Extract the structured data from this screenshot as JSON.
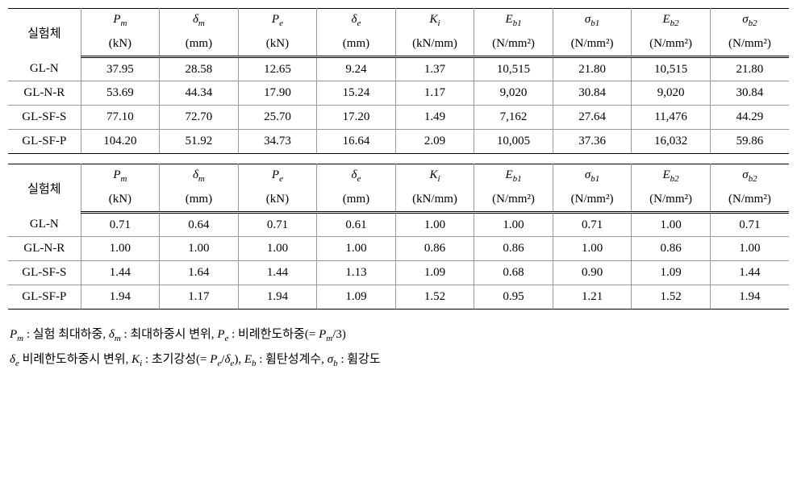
{
  "headers": {
    "specimen": "실험체",
    "cols": [
      {
        "sym": "P",
        "sub": "m",
        "unit": "(kN)"
      },
      {
        "sym": "δ",
        "sub": "m",
        "unit": "(mm)"
      },
      {
        "sym": "P",
        "sub": "e",
        "unit": "(kN)"
      },
      {
        "sym": "δ",
        "sub": "e",
        "unit": "(mm)"
      },
      {
        "sym": "K",
        "sub": "i",
        "unit": "(kN/mm)"
      },
      {
        "sym": "E",
        "sub": "b1",
        "unit": "(N/mm²)"
      },
      {
        "sym": "σ",
        "sub": "b1",
        "unit": "(N/mm²)"
      },
      {
        "sym": "E",
        "sub": "b2",
        "unit": "(N/mm²)"
      },
      {
        "sym": "σ",
        "sub": "b2",
        "unit": "(N/mm²)"
      }
    ]
  },
  "table1": [
    {
      "name": "GL-N",
      "v": [
        "37.95",
        "28.58",
        "12.65",
        "9.24",
        "1.37",
        "10,515",
        "21.80",
        "10,515",
        "21.80"
      ]
    },
    {
      "name": "GL-N-R",
      "v": [
        "53.69",
        "44.34",
        "17.90",
        "15.24",
        "1.17",
        "9,020",
        "30.84",
        "9,020",
        "30.84"
      ]
    },
    {
      "name": "GL-SF-S",
      "v": [
        "77.10",
        "72.70",
        "25.70",
        "17.20",
        "1.49",
        "7,162",
        "27.64",
        "11,476",
        "44.29"
      ]
    },
    {
      "name": "GL-SF-P",
      "v": [
        "104.20",
        "51.92",
        "34.73",
        "16.64",
        "2.09",
        "10,005",
        "37.36",
        "16,032",
        "59.86"
      ]
    }
  ],
  "table2": [
    {
      "name": "GL-N",
      "v": [
        "0.71",
        "0.64",
        "0.71",
        "0.61",
        "1.00",
        "1.00",
        "0.71",
        "1.00",
        "0.71"
      ]
    },
    {
      "name": "GL-N-R",
      "v": [
        "1.00",
        "1.00",
        "1.00",
        "1.00",
        "0.86",
        "0.86",
        "1.00",
        "0.86",
        "1.00"
      ]
    },
    {
      "name": "GL-SF-S",
      "v": [
        "1.44",
        "1.64",
        "1.44",
        "1.13",
        "1.09",
        "0.68",
        "0.90",
        "1.09",
        "1.44"
      ]
    },
    {
      "name": "GL-SF-P",
      "v": [
        "1.94",
        "1.17",
        "1.94",
        "1.09",
        "1.52",
        "0.95",
        "1.21",
        "1.52",
        "1.94"
      ]
    }
  ],
  "legend": {
    "line1_parts": [
      {
        "sym": "P",
        "sub": "m",
        "txt": " : 실험 최대하중,   "
      },
      {
        "sym": "δ",
        "sub": "m",
        "txt": " : 최대하중시 변위,   "
      },
      {
        "sym": "P",
        "sub": "e",
        "txt": " : 비례한도하중(= ",
        "after_sym": "P",
        "after_sub": "m",
        "after_txt": "/3)"
      }
    ],
    "line2_parts": [
      {
        "sym": "δ",
        "sub": "e",
        "txt": " 비례한도하중시 변위,   "
      },
      {
        "sym": "K",
        "sub": "i",
        "txt": " : 초기강성(= ",
        "after_sym": "P",
        "after_sub": "e",
        "mid": "/",
        "after_sym2": "δ",
        "after_sub2": "e",
        "after_txt": "),   "
      },
      {
        "sym": "E",
        "sub": "b",
        "txt": " : 휨탄성계수,   "
      },
      {
        "sym": "σ",
        "sub": "b",
        "txt": " : 휨강도"
      }
    ]
  }
}
